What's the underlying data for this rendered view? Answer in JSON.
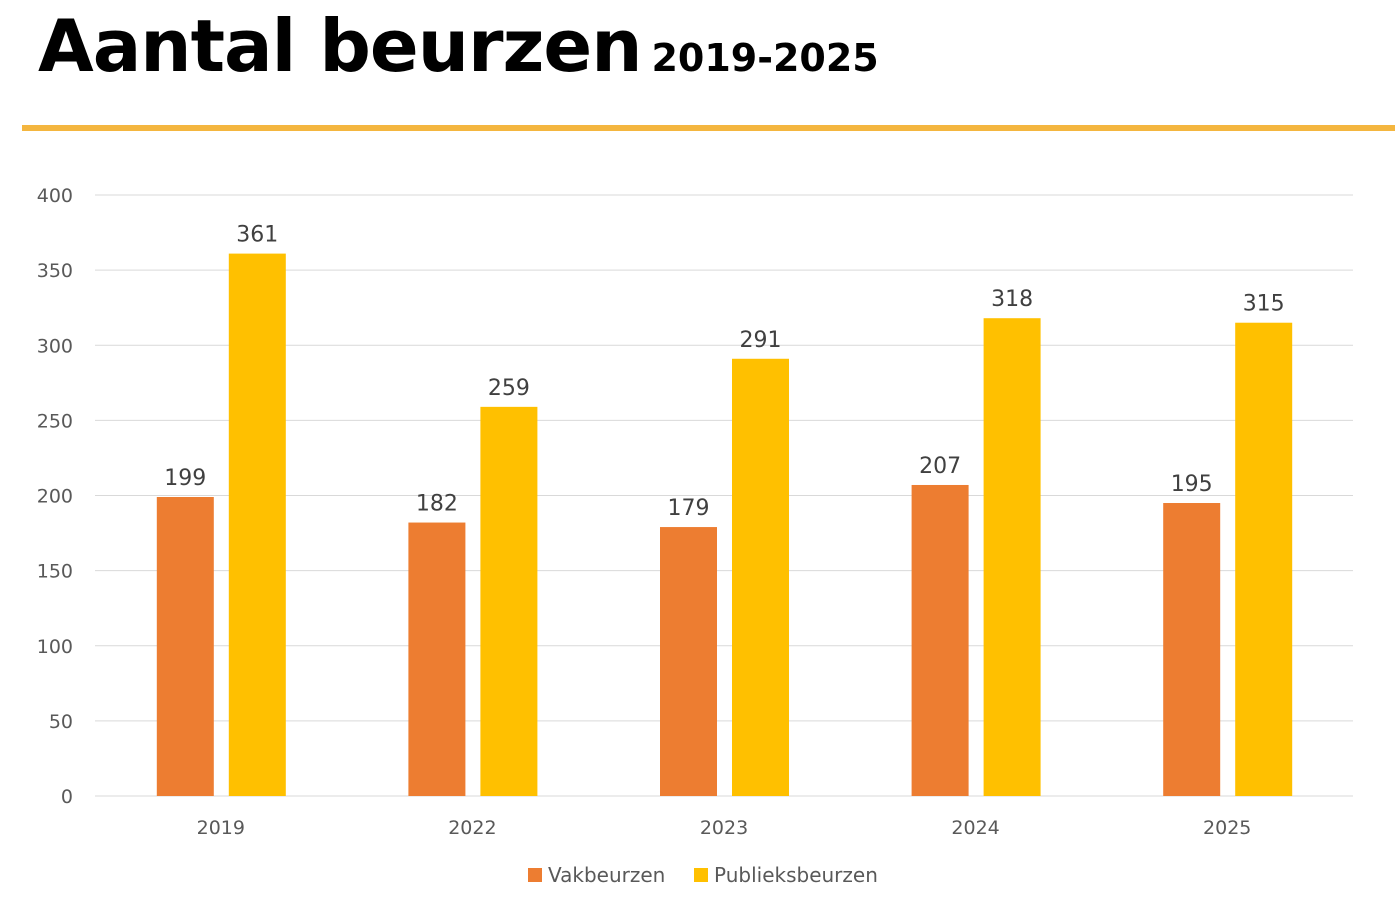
{
  "title": {
    "main": "Aantal beurzen",
    "sub": "2019-2025"
  },
  "colors": {
    "rule": "#F4B63F",
    "Vakbeurzen": "#ED7D31",
    "Publieksbeurzen": "#FFC000"
  },
  "chart_data": {
    "type": "bar",
    "title": "Aantal beurzen 2019-2025",
    "xlabel": "",
    "ylabel": "",
    "categories": [
      "2019",
      "2022",
      "2023",
      "2024",
      "2025"
    ],
    "series": [
      {
        "name": "Vakbeurzen",
        "values": [
          199,
          182,
          179,
          207,
          195
        ],
        "color": "#ED7D31"
      },
      {
        "name": "Publieksbeurzen",
        "values": [
          361,
          259,
          291,
          318,
          315
        ],
        "color": "#FFC000"
      }
    ],
    "ylim": [
      0,
      400
    ],
    "yticks": [
      "0",
      "50",
      "100",
      "150",
      "200",
      "250",
      "300",
      "350",
      "400"
    ],
    "grid": true,
    "data_labels": true,
    "legend": "bottom"
  }
}
